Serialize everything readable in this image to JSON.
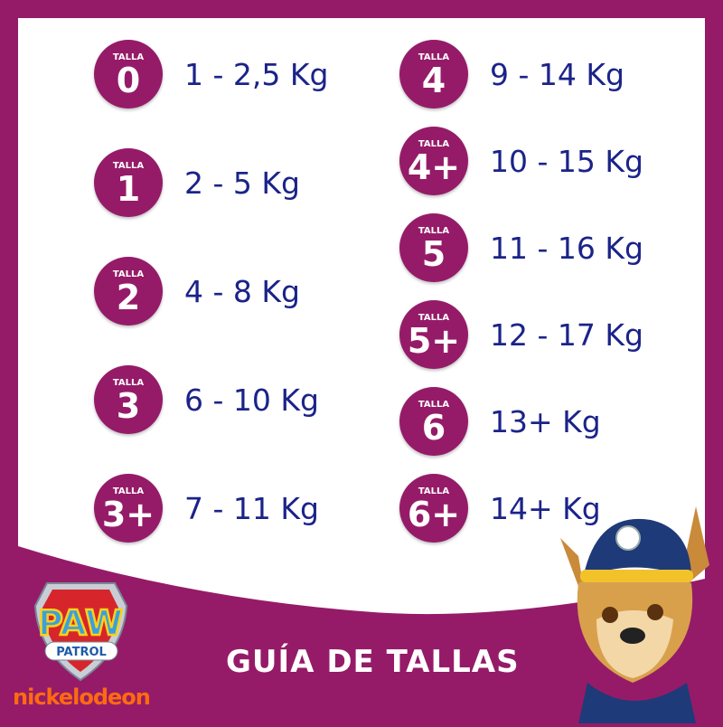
{
  "title": "GUÍA DE TALLAS",
  "badge_label": "TALLA",
  "left_column": [
    {
      "size": "0",
      "range": "1 - 2,5 Kg"
    },
    {
      "size": "1",
      "range": "2 - 5 Kg"
    },
    {
      "size": "2",
      "range": "4 - 8 Kg"
    },
    {
      "size": "3",
      "range": "6 - 10 Kg"
    },
    {
      "size": "3+",
      "range": "7 - 11 Kg"
    }
  ],
  "right_column": [
    {
      "size": "4",
      "range": "9 - 14 Kg"
    },
    {
      "size": "4+",
      "range": "10 - 15 Kg"
    },
    {
      "size": "5",
      "range": "11 - 16 Kg"
    },
    {
      "size": "5+",
      "range": "12 - 17 Kg"
    },
    {
      "size": "6",
      "range": "13+ Kg"
    },
    {
      "size": "6+",
      "range": "14+ Kg"
    }
  ],
  "brand": {
    "logo": "PAW PATROL",
    "logo_sub": "PATROL",
    "network": "nickelodeon"
  },
  "colors": {
    "background": "#951b69",
    "text": "#1b2389",
    "nick": "#ff6a10"
  }
}
